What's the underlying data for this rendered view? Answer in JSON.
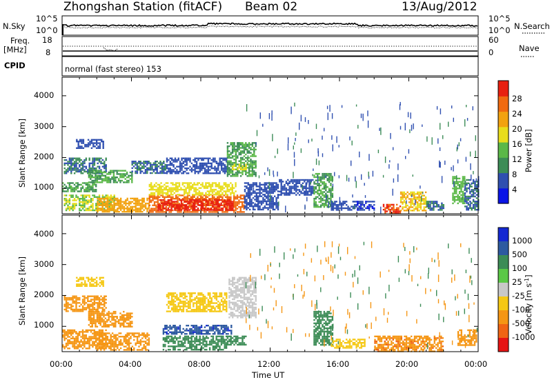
{
  "header": {
    "station": "Zhongshan Station (fitACF)",
    "beam": "Beam 02",
    "date": "13/Aug/2012"
  },
  "top_panels": {
    "nsky_label": "N.Sky",
    "nsky_ticks": [
      "10^5",
      "10^0"
    ],
    "nsearch_label": "N.Search",
    "freq_label_1": "Freq.",
    "freq_label_2": "[MHz]",
    "freq_ticks": [
      "18",
      "8"
    ],
    "nave_ticks": [
      "60",
      "0"
    ],
    "nave_label": "Nave",
    "cpid_label": "CPID",
    "cpid_value": "normal (fast stereo) 153"
  },
  "axes": {
    "ylabel": "Slant Range [km]",
    "xlabel": "Time UT",
    "y_ticks": [
      "1000",
      "2000",
      "3000",
      "4000"
    ],
    "x_ticks": [
      "00:00",
      "04:00",
      "08:00",
      "12:00",
      "16:00",
      "20:00",
      "00:00"
    ]
  },
  "power_scale": {
    "label": "Power [dB]",
    "ticks": [
      "4",
      "8",
      "12",
      "16",
      "20",
      "24",
      "28"
    ],
    "colors": [
      "#0a14e6",
      "#2f4fb0",
      "#3c8c56",
      "#5bb848",
      "#e8dd1c",
      "#f2a210",
      "#f06a10",
      "#e82010"
    ]
  },
  "velocity_scale": {
    "label": "Velocity [m s",
    "label_sup": "-1",
    "label_end": "]",
    "ticks": [
      "1000",
      "500",
      "100",
      "25",
      "-25",
      "-100",
      "-500",
      "-1000"
    ],
    "colors": [
      "#1428d2",
      "#2d5aa0",
      "#3c8c56",
      "#5ac846",
      "#c8c8c8",
      "#f5c814",
      "#f59614",
      "#f06414",
      "#e61414"
    ]
  },
  "chart_data": [
    {
      "type": "heatmap",
      "name": "Power",
      "x_range_hours": [
        0,
        24
      ],
      "y_range_km": [
        180,
        4600
      ],
      "value_range": [
        0,
        30
      ],
      "regions": [
        {
          "t": [
            0.0,
            2.0
          ],
          "r": [
            900,
            1200
          ],
          "v": 12
        },
        {
          "t": [
            0.1,
            3.0
          ],
          "r": [
            300,
            800
          ],
          "v": 16
        },
        {
          "t": [
            0.1,
            2.5
          ],
          "r": [
            1500,
            2000
          ],
          "v": 8
        },
        {
          "t": [
            0.8,
            2.4
          ],
          "r": [
            2300,
            2600
          ],
          "v": 6
        },
        {
          "t": [
            1.5,
            4.0
          ],
          "r": [
            1200,
            1600
          ],
          "v": 12
        },
        {
          "t": [
            2.0,
            5.0
          ],
          "r": [
            250,
            700
          ],
          "v": 22
        },
        {
          "t": [
            4.0,
            6.0
          ],
          "r": [
            1500,
            1900
          ],
          "v": 8
        },
        {
          "t": [
            5.0,
            10.5
          ],
          "r": [
            250,
            800
          ],
          "v": 27
        },
        {
          "t": [
            5.5,
            9.8
          ],
          "r": [
            300,
            650
          ],
          "v": 29
        },
        {
          "t": [
            5.0,
            10.0
          ],
          "r": [
            800,
            1200
          ],
          "v": 18
        },
        {
          "t": [
            6.0,
            9.5
          ],
          "r": [
            1500,
            2000
          ],
          "v": 6
        },
        {
          "t": [
            9.5,
            11.2
          ],
          "r": [
            1400,
            2500
          ],
          "v": 12
        },
        {
          "t": [
            9.8,
            10.6
          ],
          "r": [
            1600,
            1800
          ],
          "v": 18
        },
        {
          "t": [
            10.5,
            12.5
          ],
          "r": [
            300,
            1200
          ],
          "v": 6
        },
        {
          "t": [
            12.5,
            14.5
          ],
          "r": [
            800,
            1300
          ],
          "v": 6
        },
        {
          "t": [
            14.5,
            15.6
          ],
          "r": [
            400,
            1500
          ],
          "v": 12
        },
        {
          "t": [
            15.5,
            17.0
          ],
          "r": [
            300,
            600
          ],
          "v": 6
        },
        {
          "t": [
            17.0,
            18.0
          ],
          "r": [
            300,
            600
          ],
          "v": 4
        },
        {
          "t": [
            18.5,
            19.5
          ],
          "r": [
            200,
            500
          ],
          "v": 28
        },
        {
          "t": [
            19.5,
            21.0
          ],
          "r": [
            300,
            900
          ],
          "v": 20
        },
        {
          "t": [
            21.0,
            22.0
          ],
          "r": [
            300,
            600
          ],
          "v": 8
        },
        {
          "t": [
            22.5,
            23.2
          ],
          "r": [
            500,
            1400
          ],
          "v": 14
        },
        {
          "t": [
            23.2,
            24.0
          ],
          "r": [
            300,
            1300
          ],
          "v": 8
        }
      ]
    },
    {
      "type": "heatmap",
      "name": "Velocity",
      "x_range_hours": [
        0,
        24
      ],
      "y_range_km": [
        180,
        4600
      ],
      "value_range": [
        -1000,
        1000
      ],
      "regions": [
        {
          "t": [
            0.0,
            2.5
          ],
          "r": [
            300,
            900
          ],
          "v": -400
        },
        {
          "t": [
            0.1,
            2.5
          ],
          "r": [
            1500,
            2000
          ],
          "v": -300
        },
        {
          "t": [
            0.8,
            2.4
          ],
          "r": [
            2300,
            2600
          ],
          "v": -30
        },
        {
          "t": [
            1.5,
            4.0
          ],
          "r": [
            1000,
            1500
          ],
          "v": -300
        },
        {
          "t": [
            2.0,
            5.0
          ],
          "r": [
            250,
            800
          ],
          "v": -400
        },
        {
          "t": [
            5.8,
            9.8
          ],
          "r": [
            750,
            1050
          ],
          "v": 900
        },
        {
          "t": [
            5.8,
            9.5
          ],
          "r": [
            250,
            700
          ],
          "v": 200
        },
        {
          "t": [
            9.5,
            10.6
          ],
          "r": [
            400,
            700
          ],
          "v": 150
        },
        {
          "t": [
            6.0,
            9.5
          ],
          "r": [
            1500,
            2100
          ],
          "v": -30
        },
        {
          "t": [
            9.6,
            11.2
          ],
          "r": [
            1300,
            2600
          ],
          "v": 10
        },
        {
          "t": [
            14.5,
            15.6
          ],
          "r": [
            400,
            1500
          ],
          "v": 150
        },
        {
          "t": [
            15.5,
            17.5
          ],
          "r": [
            300,
            600
          ],
          "v": -80
        },
        {
          "t": [
            18.0,
            22.0
          ],
          "r": [
            200,
            700
          ],
          "v": -450
        },
        {
          "t": [
            22.8,
            23.9
          ],
          "r": [
            400,
            900
          ],
          "v": -400
        }
      ]
    }
  ]
}
